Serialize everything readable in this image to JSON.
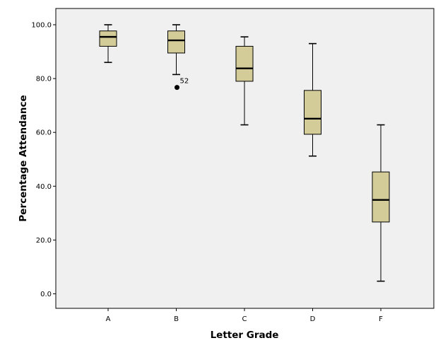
{
  "chart_data": {
    "type": "boxplot",
    "xlabel": "Letter Grade",
    "ylabel": "Percentage Attendance",
    "ylim": [
      -5,
      105
    ],
    "yticks": [
      0,
      20,
      40,
      60,
      80,
      100
    ],
    "ytick_labels": [
      "0.0",
      "20.0",
      "40.0",
      "60.0",
      "80.0",
      "100.0"
    ],
    "grid": false,
    "colors": {
      "plot_bg": "#f0f0f0",
      "box_fill": "#d4cc98",
      "stroke": "#000000"
    },
    "categories": [
      "A",
      "B",
      "C",
      "D",
      "F"
    ],
    "boxes": [
      {
        "category": "A",
        "whisker_low": 86.0,
        "q1": 92.0,
        "median": 95.5,
        "q3": 97.7,
        "whisker_high": 100.0
      },
      {
        "category": "B",
        "whisker_low": 81.5,
        "q1": 89.5,
        "median": 94.2,
        "q3": 97.7,
        "whisker_high": 100.0
      },
      {
        "category": "C",
        "whisker_low": 62.8,
        "q1": 79.0,
        "median": 83.8,
        "q3": 92.0,
        "whisker_high": 95.5
      },
      {
        "category": "D",
        "whisker_low": 51.2,
        "q1": 59.3,
        "median": 65.1,
        "q3": 75.6,
        "whisker_high": 93.0
      },
      {
        "category": "F",
        "whisker_low": 4.7,
        "q1": 26.7,
        "median": 34.9,
        "q3": 45.3,
        "whisker_high": 62.8
      }
    ],
    "outliers": [
      {
        "category": "B",
        "value": 76.7,
        "label": "52"
      }
    ]
  }
}
